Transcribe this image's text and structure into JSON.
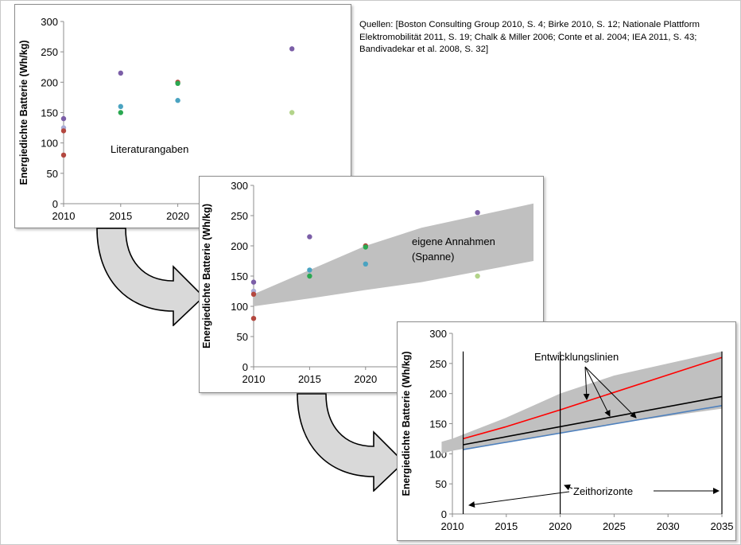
{
  "sources_text": "Quellen: [Boston Consulting Group 2010, S. 4; Birke 2010, S. 12; Nationale Plattform Elektromobilität 2011, S. 19; Chalk & Miller 2006; Conte et al. 2004; IEA 2011, S. 43; Bandivadekar et al. 2008, S. 32]",
  "colors": {
    "band": "#c0c0c0",
    "arrow_fill": "#d9d9d9",
    "line_red": "#ff0000",
    "line_black": "#000000",
    "line_blue": "#4f81bd",
    "point_purple": "#7b5ea7",
    "point_red": "#b3473f",
    "point_teal": "#4aa3c1",
    "point_green": "#2aa851",
    "point_lightgreen": "#b3d48a",
    "point_lavender": "#a9acd6"
  },
  "chart_data": [
    {
      "type": "scatter",
      "ylabel": "Energiedichte Batterie (Wh/kg)",
      "ylim": [
        0,
        300
      ],
      "y_ticks": [
        0,
        50,
        100,
        150,
        200,
        250,
        300
      ],
      "x_ticks": [
        2010,
        2015,
        2020
      ],
      "annotation": "Literaturangaben",
      "points": [
        {
          "x": 2010,
          "y": 140,
          "color": "point_purple"
        },
        {
          "x": 2010,
          "y": 125,
          "color": "point_lavender"
        },
        {
          "x": 2010,
          "y": 120,
          "color": "point_red"
        },
        {
          "x": 2010,
          "y": 80,
          "color": "point_red"
        },
        {
          "x": 2015,
          "y": 215,
          "color": "point_purple"
        },
        {
          "x": 2015,
          "y": 160,
          "color": "point_teal"
        },
        {
          "x": 2015,
          "y": 150,
          "color": "point_green"
        },
        {
          "x": 2020,
          "y": 200,
          "color": "point_red"
        },
        {
          "x": 2020,
          "y": 198,
          "color": "point_green"
        },
        {
          "x": 2020,
          "y": 170,
          "color": "point_teal"
        },
        {
          "x": 2030,
          "y": 255,
          "color": "point_purple"
        },
        {
          "x": 2030,
          "y": 150,
          "color": "point_lightgreen"
        }
      ]
    },
    {
      "type": "scatter",
      "ylabel": "Energiedichte Batterie (Wh/kg)",
      "ylim": [
        0,
        300
      ],
      "y_ticks": [
        0,
        50,
        100,
        150,
        200,
        250,
        300
      ],
      "x_ticks": [
        2010,
        2015,
        2020
      ],
      "annotation_lines": [
        "eigene Annahmen",
        "(Spanne)"
      ],
      "band": {
        "x": [
          2010,
          2015,
          2020,
          2025,
          2035
        ],
        "upper": [
          120,
          160,
          200,
          230,
          270
        ],
        "lower": [
          100,
          113,
          127,
          140,
          175
        ]
      },
      "points": [
        {
          "x": 2010,
          "y": 140,
          "color": "point_purple"
        },
        {
          "x": 2010,
          "y": 125,
          "color": "point_lavender"
        },
        {
          "x": 2010,
          "y": 120,
          "color": "point_red"
        },
        {
          "x": 2010,
          "y": 80,
          "color": "point_red"
        },
        {
          "x": 2015,
          "y": 215,
          "color": "point_purple"
        },
        {
          "x": 2015,
          "y": 160,
          "color": "point_teal"
        },
        {
          "x": 2015,
          "y": 150,
          "color": "point_green"
        },
        {
          "x": 2020,
          "y": 200,
          "color": "point_red"
        },
        {
          "x": 2020,
          "y": 198,
          "color": "point_green"
        },
        {
          "x": 2020,
          "y": 170,
          "color": "point_teal"
        },
        {
          "x": 2030,
          "y": 255,
          "color": "point_purple"
        },
        {
          "x": 2030,
          "y": 150,
          "color": "point_lightgreen"
        }
      ]
    },
    {
      "type": "line",
      "ylabel": "Energiedichte Batterie (Wh/kg)",
      "ylim": [
        0,
        300
      ],
      "xlim": [
        2010,
        2035
      ],
      "y_ticks": [
        0,
        50,
        100,
        150,
        200,
        250,
        300
      ],
      "x_ticks": [
        2010,
        2015,
        2020,
        2025,
        2030,
        2035
      ],
      "annotation_top": "Entwicklungslinien",
      "annotation_bottom": "Zeithorizonte",
      "band": {
        "x": [
          2009,
          2010,
          2015,
          2020,
          2025,
          2035
        ],
        "upper": [
          120,
          125,
          160,
          200,
          230,
          270
        ],
        "lower": [
          100,
          105,
          120,
          135,
          150,
          175
        ]
      },
      "series": [
        {
          "color": "line_red",
          "x": [
            2011,
            2015,
            2020,
            2035
          ],
          "y": [
            125,
            145,
            173,
            260
          ]
        },
        {
          "color": "line_black",
          "x": [
            2011,
            2035
          ],
          "y": [
            115,
            195
          ]
        },
        {
          "color": "line_blue",
          "x": [
            2011,
            2035
          ],
          "y": [
            107,
            180
          ]
        }
      ],
      "horizons": [
        2011,
        2020,
        2035
      ]
    }
  ]
}
